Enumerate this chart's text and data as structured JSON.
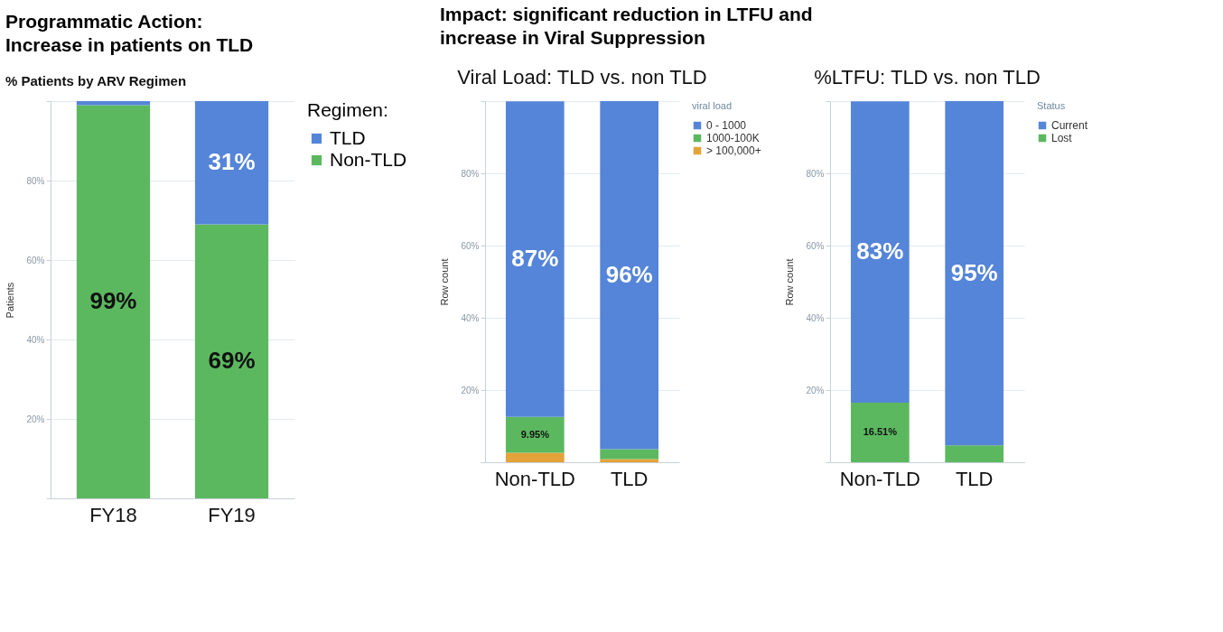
{
  "chart_data": [
    {
      "type": "bar",
      "title": "% Patients by ARV Regimen",
      "annotations": [
        "Programmatic Action:",
        "Increase in patients on TLD"
      ],
      "ylabel": "Patients",
      "legend_title": "Regimen:",
      "categories": [
        "FY18",
        "FY19"
      ],
      "stacked": true,
      "series": [
        {
          "name": "Non-TLD",
          "color": "#5cb85f",
          "values": [
            99,
            69
          ],
          "value_labels": [
            "99%",
            "69%"
          ]
        },
        {
          "name": "TLD",
          "color": "#5585d8",
          "values": [
            1,
            31
          ],
          "value_labels": [
            null,
            "31%"
          ]
        }
      ],
      "ylim": [
        0,
        100
      ],
      "yticks": [
        {
          "value": 0,
          "label": null
        },
        {
          "value": 20,
          "label": "20%"
        },
        {
          "value": 40,
          "label": "40%"
        },
        {
          "value": 60,
          "label": "60%"
        },
        {
          "value": 80,
          "label": "80%"
        },
        {
          "value": 100,
          "label": null
        }
      ],
      "grid": "y",
      "legend": "right"
    },
    {
      "type": "bar",
      "title": "Viral Load: TLD vs. non TLD",
      "annotations": [
        "Impact:  significant reduction in LTFU and",
        "increase in Viral Suppression"
      ],
      "ylabel": "Row count",
      "legend_title": "viral load",
      "categories": [
        "Non-TLD",
        "TLD"
      ],
      "stacked": true,
      "series": [
        {
          "name": "> 100,000+",
          "color": "#e3a33a",
          "values": [
            2.6,
            0.9
          ]
        },
        {
          "name": "1000-100K",
          "color": "#5cb85f",
          "values": [
            9.95,
            2.7
          ],
          "value_labels": [
            "9.95%",
            null
          ]
        },
        {
          "name": "0 - 1000",
          "color": "#5585d8",
          "values": [
            87.4,
            96.4
          ],
          "value_labels": [
            "87%",
            "96%"
          ]
        }
      ],
      "ylim": [
        0,
        100
      ],
      "yticks": [
        {
          "value": 0,
          "label": null
        },
        {
          "value": 20,
          "label": "20%"
        },
        {
          "value": 40,
          "label": "40%"
        },
        {
          "value": 60,
          "label": "60%"
        },
        {
          "value": 80,
          "label": "80%"
        },
        {
          "value": 100,
          "label": null
        }
      ],
      "grid": "y",
      "legend": "right"
    },
    {
      "type": "bar",
      "title": "%LTFU: TLD vs. non TLD",
      "ylabel": "Row count",
      "legend_title": "Status",
      "categories": [
        "Non-TLD",
        "TLD"
      ],
      "stacked": true,
      "series": [
        {
          "name": "Lost",
          "color": "#5cb85f",
          "values": [
            16.51,
            4.7
          ],
          "value_labels": [
            "16.51%",
            null
          ]
        },
        {
          "name": "Current",
          "color": "#5585d8",
          "values": [
            83.4,
            95.3
          ],
          "value_labels": [
            "83%",
            "95%"
          ]
        }
      ],
      "ylim": [
        0,
        100
      ],
      "yticks": [
        {
          "value": 0,
          "label": null
        },
        {
          "value": 20,
          "label": "20%"
        },
        {
          "value": 40,
          "label": "40%"
        },
        {
          "value": 60,
          "label": "60%"
        },
        {
          "value": 80,
          "label": "80%"
        },
        {
          "value": 100,
          "label": null
        }
      ],
      "grid": "y",
      "legend": "right"
    }
  ]
}
